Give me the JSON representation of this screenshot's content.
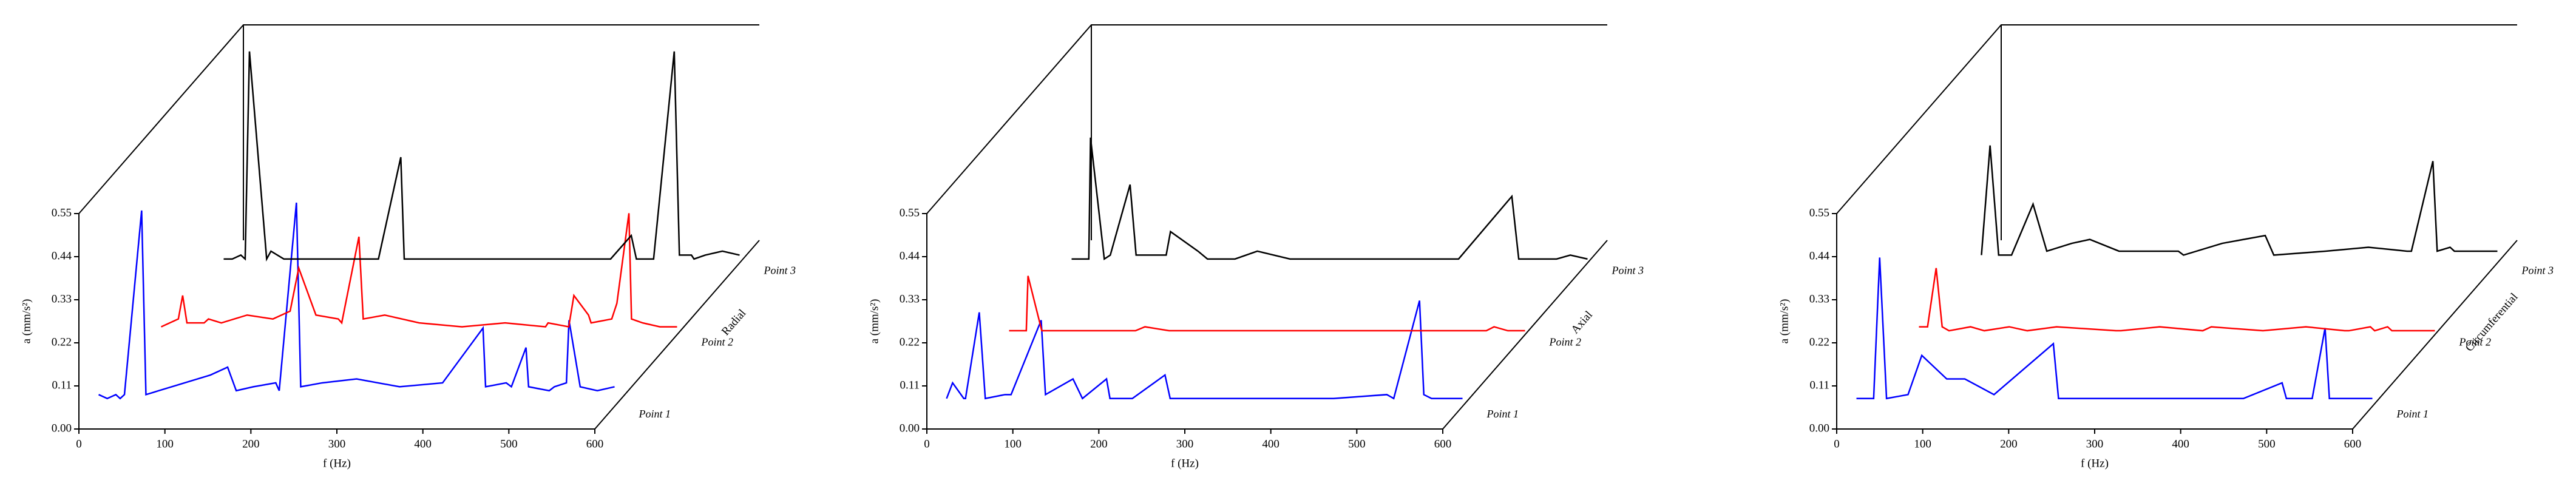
{
  "chart_data": [
    {
      "type": "waterfall",
      "x_label": "f (Hz)",
      "y_label": "a (mm/s²)",
      "z_label": "Radial",
      "xlim": [
        0,
        600
      ],
      "xticks": [
        0,
        100,
        200,
        300,
        400,
        500,
        600
      ],
      "ylim": [
        0,
        0.55
      ],
      "yticks": [
        {
          "value": 0,
          "label": "0.00"
        },
        0.11,
        0.22,
        0.33,
        0.44,
        0.55
      ],
      "x": [
        0,
        10,
        20,
        25,
        30,
        50,
        55,
        70,
        100,
        130,
        150,
        160,
        180,
        206,
        210,
        230,
        235,
        260,
        300,
        350,
        400,
        447,
        450,
        474,
        480,
        497,
        500,
        524,
        530,
        544,
        547,
        560,
        580,
        600
      ],
      "series": [
        {
          "name": "Point 1",
          "color": "#0000ff",
          "values": [
            0.03,
            0.02,
            0.03,
            0.02,
            0.03,
            0.5,
            0.03,
            0.04,
            0.06,
            0.08,
            0.1,
            0.04,
            0.05,
            0.06,
            0.04,
            0.52,
            0.05,
            0.06,
            0.07,
            0.05,
            0.06,
            0.2,
            0.05,
            0.06,
            0.05,
            0.15,
            0.05,
            0.04,
            0.05,
            0.06,
            0.22,
            0.05,
            0.04,
            0.05
          ]
        },
        {
          "name": "Point 2",
          "color": "#ff0000",
          "values": [
            0.02,
            0.03,
            0.04,
            0.1,
            0.03,
            0.03,
            0.04,
            0.03,
            0.05,
            0.04,
            0.06,
            0.17,
            0.05,
            0.04,
            0.03,
            0.25,
            0.04,
            0.05,
            0.03,
            0.02,
            0.03,
            0.02,
            0.03,
            0.02,
            0.1,
            0.05,
            0.03,
            0.04,
            0.08,
            0.31,
            0.04,
            0.03,
            0.02,
            0.02
          ]
        },
        {
          "name": "Point 3",
          "color": "#000000",
          "values": [
            0.01,
            0.01,
            0.02,
            0.01,
            0.54,
            0.01,
            0.03,
            0.01,
            0.01,
            0.01,
            0.01,
            0.01,
            0.01,
            0.27,
            0.01,
            0.01,
            0.01,
            0.01,
            0.01,
            0.01,
            0.01,
            0.01,
            0.01,
            0.07,
            0.01,
            0.01,
            0.01,
            0.54,
            0.02,
            0.02,
            0.01,
            0.02,
            0.03,
            0.02
          ]
        }
      ]
    },
    {
      "type": "waterfall",
      "x_label": "f (Hz)",
      "y_label": "a (mm/s²)",
      "z_label": "Axial",
      "xlim": [
        0,
        600
      ],
      "xticks": [
        0,
        100,
        200,
        300,
        400,
        500,
        600
      ],
      "ylim": [
        0,
        0.55
      ],
      "yticks": [
        {
          "value": 0,
          "label": "0.00"
        },
        0.11,
        0.22,
        0.33,
        0.44,
        0.55
      ],
      "x": [
        0,
        7,
        20,
        22,
        38,
        45,
        68,
        75,
        110,
        115,
        147,
        158,
        186,
        190,
        216,
        254,
        260,
        350,
        450,
        512,
        520,
        550,
        555,
        564,
        580,
        600
      ],
      "series": [
        {
          "name": "Point 1",
          "color": "#0000ff",
          "values": [
            0.02,
            0.06,
            0.02,
            0.02,
            0.24,
            0.02,
            0.03,
            0.03,
            0.22,
            0.03,
            0.07,
            0.02,
            0.07,
            0.02,
            0.02,
            0.08,
            0.02,
            0.02,
            0.02,
            0.03,
            0.02,
            0.27,
            0.03,
            0.02,
            0.02,
            0.02
          ]
        },
        {
          "name": "Point 2",
          "color": "#ff0000",
          "values": [
            0.01,
            0.01,
            0.01,
            0.15,
            0.01,
            0.01,
            0.01,
            0.01,
            0.01,
            0.01,
            0.01,
            0.02,
            0.01,
            0.01,
            0.01,
            0.01,
            0.01,
            0.01,
            0.01,
            0.01,
            0.01,
            0.01,
            0.01,
            0.02,
            0.01,
            0.01
          ]
        },
        {
          "name": "Point 3",
          "color": "#000000",
          "values": [
            0.01,
            0.01,
            0.01,
            0.32,
            0.01,
            0.02,
            0.2,
            0.02,
            0.02,
            0.08,
            0.03,
            0.01,
            0.01,
            0.01,
            0.03,
            0.01,
            0.01,
            0.01,
            0.01,
            0.17,
            0.01,
            0.01,
            0.01,
            0.01,
            0.02,
            0.01
          ]
        }
      ]
    },
    {
      "type": "waterfall",
      "x_label": "f (Hz)",
      "y_label": "a (mm/s²)",
      "z_label": "Circumferential",
      "xlim": [
        0,
        600
      ],
      "xticks": [
        0,
        100,
        200,
        300,
        400,
        500,
        600
      ],
      "ylim": [
        0,
        0.55
      ],
      "yticks": [
        {
          "value": 0,
          "label": "0.00"
        },
        0.11,
        0.22,
        0.33,
        0.44,
        0.55
      ],
      "x": [
        0,
        10,
        20,
        27,
        35,
        60,
        76,
        105,
        126,
        160,
        229,
        235,
        280,
        330,
        340,
        400,
        450,
        495,
        500,
        525,
        530,
        545,
        550,
        600
      ],
      "series": [
        {
          "name": "Point 1",
          "color": "#0000ff",
          "values": [
            0.02,
            0.02,
            0.02,
            0.38,
            0.02,
            0.03,
            0.13,
            0.07,
            0.07,
            0.03,
            0.16,
            0.02,
            0.02,
            0.02,
            0.02,
            0.02,
            0.02,
            0.06,
            0.02,
            0.02,
            0.02,
            0.2,
            0.02,
            0.02
          ]
        },
        {
          "name": "Point 2",
          "color": "#ff0000",
          "values": [
            0.02,
            0.02,
            0.17,
            0.02,
            0.01,
            0.02,
            0.01,
            0.02,
            0.01,
            0.02,
            0.01,
            0.01,
            0.02,
            0.01,
            0.02,
            0.01,
            0.02,
            0.01,
            0.01,
            0.02,
            0.01,
            0.02,
            0.01,
            0.01
          ]
        },
        {
          "name": "Point 3",
          "color": "#000000",
          "values": [
            0.02,
            0.3,
            0.02,
            0.02,
            0.02,
            0.15,
            0.03,
            0.05,
            0.06,
            0.03,
            0.03,
            0.02,
            0.05,
            0.07,
            0.02,
            0.03,
            0.04,
            0.03,
            0.03,
            0.26,
            0.03,
            0.04,
            0.03,
            0.03
          ]
        }
      ]
    }
  ]
}
